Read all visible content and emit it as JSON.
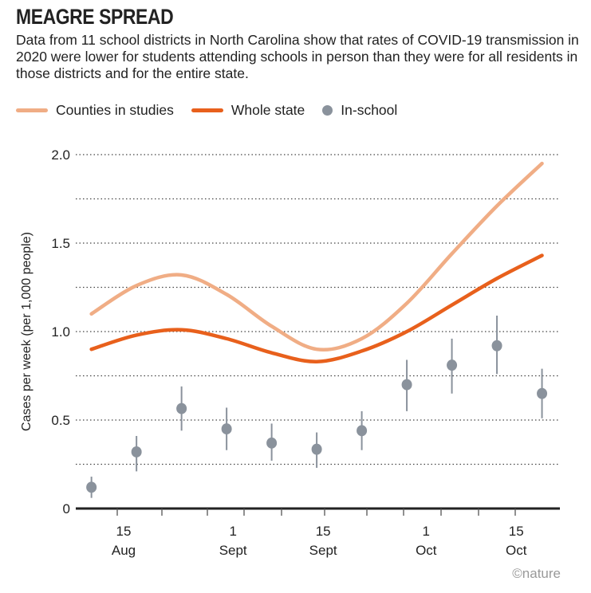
{
  "title": "MEAGRE SPREAD",
  "subtitle": "Data from 11 school districts in North Carolina show that rates of COVID-19 transmission in 2020 were lower for students attending schools in person than they were for all residents in those districts and for the entire state.",
  "credit": "©nature",
  "chart_data": {
    "type": "line",
    "ylabel": "Cases per week (per 1,000 people)",
    "ylim": [
      0,
      2.0
    ],
    "yticks": [
      0,
      0.5,
      1.0,
      1.5,
      2.0
    ],
    "ytick_labels": [
      "0",
      "0.5",
      "1.0",
      "1.5",
      "2.0"
    ],
    "grid": "horizontal dotted every 0.25",
    "legend_placement": "top",
    "xtick_labels": [
      {
        "date": "2020-08-15",
        "line1": "15",
        "line2": "Aug"
      },
      {
        "date": "2020-09-01",
        "line1": "1",
        "line2": "Sept"
      },
      {
        "date": "2020-09-15",
        "line1": "15",
        "line2": "Sept"
      },
      {
        "date": "2020-10-01",
        "line1": "1",
        "line2": "Oct"
      },
      {
        "date": "2020-10-15",
        "line1": "15",
        "line2": "Oct"
      }
    ],
    "x": [
      "2020-08-10",
      "2020-08-17",
      "2020-08-24",
      "2020-08-31",
      "2020-09-07",
      "2020-09-14",
      "2020-09-21",
      "2020-09-28",
      "2020-10-05",
      "2020-10-12",
      "2020-10-19"
    ],
    "series": [
      {
        "name": "Counties in studies",
        "kind": "line",
        "color": "#f0ad85",
        "values": [
          1.1,
          1.26,
          1.32,
          1.21,
          1.03,
          0.9,
          0.96,
          1.16,
          1.44,
          1.71,
          1.95
        ]
      },
      {
        "name": "Whole state",
        "kind": "line",
        "color": "#e8601c",
        "values": [
          0.9,
          0.98,
          1.01,
          0.96,
          0.88,
          0.83,
          0.89,
          1.0,
          1.15,
          1.3,
          1.43
        ]
      },
      {
        "name": "In-school",
        "kind": "points",
        "color": "#8a929c",
        "values": [
          0.12,
          0.32,
          0.565,
          0.45,
          0.37,
          0.335,
          0.44,
          0.7,
          0.81,
          0.92,
          0.65
        ],
        "lower": [
          0.06,
          0.21,
          0.44,
          0.33,
          0.27,
          0.23,
          0.33,
          0.55,
          0.65,
          0.76,
          0.51
        ],
        "upper": [
          0.18,
          0.41,
          0.69,
          0.57,
          0.48,
          0.43,
          0.55,
          0.84,
          0.96,
          1.09,
          0.79
        ]
      }
    ]
  }
}
